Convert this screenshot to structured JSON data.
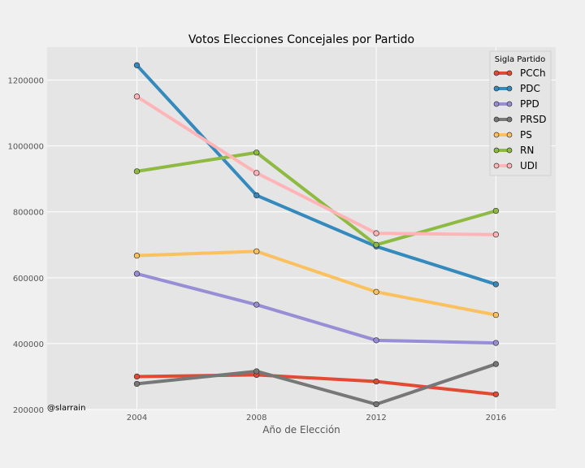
{
  "chart_data": {
    "type": "line",
    "title": "Votos Elecciones Concejales por Partido",
    "xlabel": "Año de Elección",
    "ylabel": "",
    "x": [
      2004,
      2008,
      2012,
      2016
    ],
    "xlim": [
      2001,
      2018
    ],
    "ylim": [
      200000,
      1300000
    ],
    "xticks": [
      2004,
      2008,
      2012,
      2016
    ],
    "yticks": [
      200000,
      400000,
      600000,
      800000,
      1000000,
      1200000
    ],
    "grid": true,
    "legend_title": "Sigla Partido",
    "legend_position": "top-right",
    "annotation": "@slarrain",
    "series": [
      {
        "name": "PCCh",
        "color": "#e24a33",
        "values": [
          300000,
          305000,
          285000,
          246000
        ]
      },
      {
        "name": "PDC",
        "color": "#348abd",
        "values": [
          1245000,
          850000,
          695000,
          580000
        ]
      },
      {
        "name": "PPD",
        "color": "#988ed5",
        "values": [
          612000,
          518000,
          410000,
          402000
        ]
      },
      {
        "name": "PRSD",
        "color": "#777777",
        "values": [
          278000,
          316000,
          216000,
          338000
        ]
      },
      {
        "name": "PS",
        "color": "#fbc15e",
        "values": [
          667000,
          680000,
          557000,
          487000
        ]
      },
      {
        "name": "RN",
        "color": "#8eba42",
        "values": [
          923000,
          980000,
          700000,
          803000
        ]
      },
      {
        "name": "UDI",
        "color": "#ffb5b8",
        "values": [
          1150000,
          918000,
          735000,
          731000
        ]
      }
    ]
  }
}
